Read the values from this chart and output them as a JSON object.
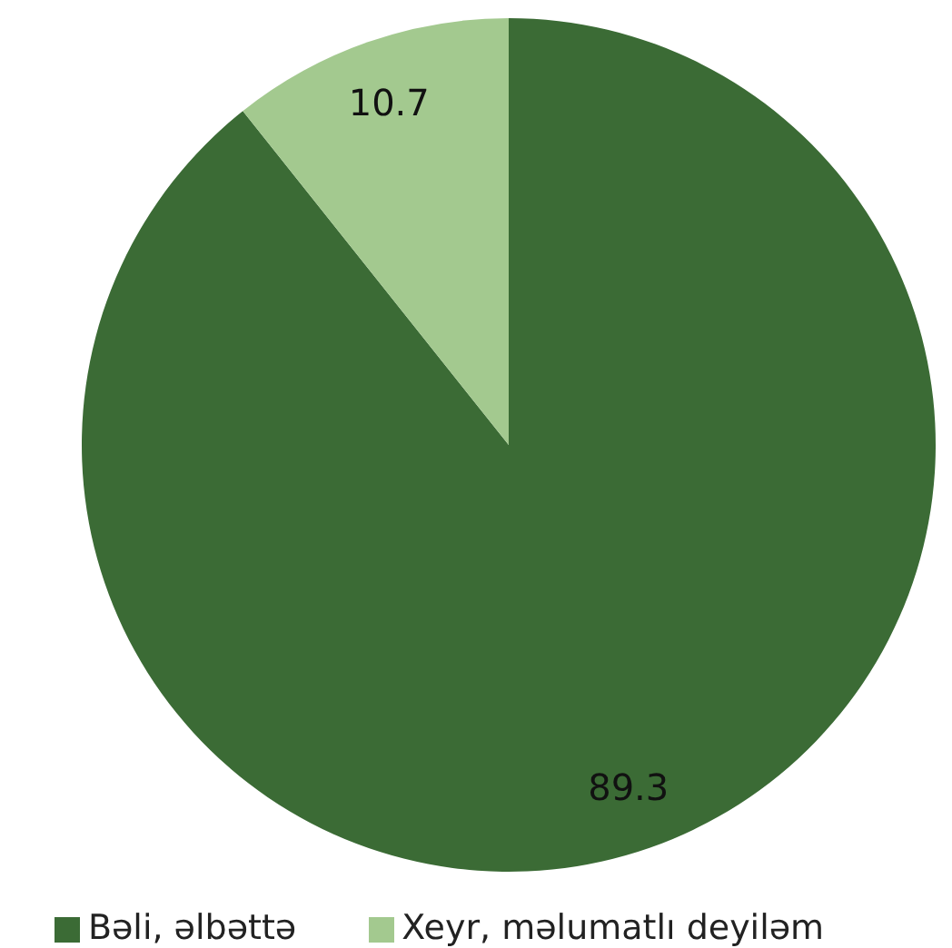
{
  "chart_data": {
    "type": "pie",
    "categories": [
      "Bəli, əlbəttə",
      "Xeyr, məlumatlı deyiləm"
    ],
    "values": [
      89.3,
      10.7
    ],
    "colors": [
      "#3b6b35",
      "#a3c98f"
    ],
    "data_labels": true,
    "legend": "bottom"
  }
}
